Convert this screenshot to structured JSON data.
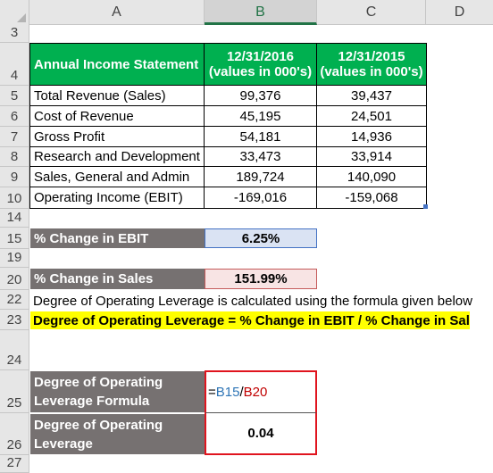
{
  "columns": [
    "A",
    "B",
    "C",
    "D"
  ],
  "rows": {
    "r3": "3",
    "r4": "4",
    "r5": "5",
    "r6": "6",
    "r7": "7",
    "r8": "8",
    "r9": "9",
    "r10": "10",
    "r14": "14",
    "r15": "15",
    "r19": "19",
    "r20": "20",
    "r22": "22",
    "r23": "23",
    "r24": "24",
    "r25": "25",
    "r26": "26",
    "r27": "27"
  },
  "table": {
    "header": {
      "label": "Annual Income Statement",
      "col1_date": "12/31/2016",
      "col1_sub": "(values in 000's)",
      "col2_date": "12/31/2015",
      "col2_sub": "(values in 000's)"
    },
    "items": [
      {
        "label": "Total Revenue (Sales)",
        "v2016": "99,376",
        "v2015": "39,437"
      },
      {
        "label": "Cost of Revenue",
        "v2016": "45,195",
        "v2015": "24,501"
      },
      {
        "label": "Gross Profit",
        "v2016": "54,181",
        "v2015": "14,936"
      },
      {
        "label": "Research and Development",
        "v2016": "33,473",
        "v2015": "33,914"
      },
      {
        "label": "Sales, General and Admin",
        "v2016": "189,724",
        "v2015": "140,090"
      },
      {
        "label": "Operating Income (EBIT)",
        "v2016": "-169,016",
        "v2015": "-159,068"
      }
    ]
  },
  "ebit": {
    "label": "% Change in EBIT",
    "value": "6.25%"
  },
  "sales": {
    "label": "% Change in Sales",
    "value": "151.99%"
  },
  "note": "Degree of Operating Leverage is calculated using the formula given below",
  "formula_text": "Degree of Operating Leverage = % Change in EBIT / % Change in Sales",
  "dol_formula": {
    "label_line1": "Degree of Operating",
    "label_line2": "Leverage Formula",
    "eq": "=",
    "ref1": "B15",
    "slash": "/",
    "ref2": "B20"
  },
  "dol": {
    "label_line1": "Degree of Operating",
    "label_line2": "Leverage",
    "value": "0.04"
  },
  "colors": {
    "header_green": "#00b050",
    "label_grey": "#767171",
    "highlight_yellow": "#ffff00",
    "ref_blue": "#2e75b6",
    "ref_red": "#c00000",
    "selection_red": "#e0141e",
    "ebit_border": "#4472c4",
    "sales_fill": "#f8e4e4"
  }
}
